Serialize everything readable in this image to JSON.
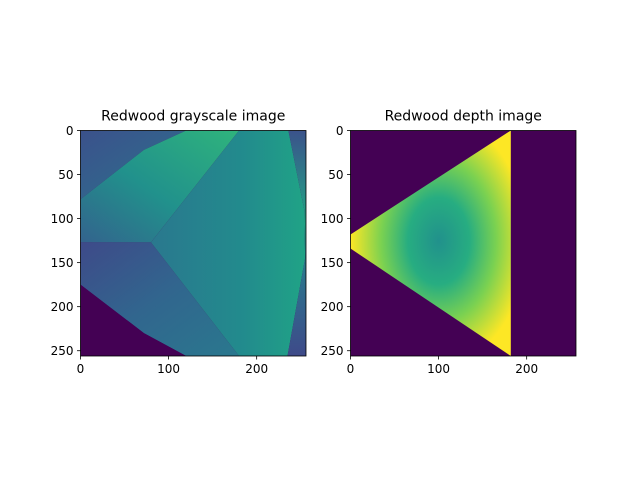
{
  "chart_data": [
    {
      "type": "heatmap",
      "title": "Redwood grayscale image",
      "xlabel": "",
      "ylabel": "",
      "xlim": [
        0,
        256
      ],
      "ylim": [
        256,
        0
      ],
      "y_inverted": true,
      "x_ticks": [
        0,
        100,
        200
      ],
      "y_ticks": [
        0,
        50,
        100,
        150,
        200,
        250
      ],
      "colormap": "viridis",
      "background_color": "#440154",
      "regions": [
        {
          "name": "upper-left",
          "polygon": [
            [
              0,
              0
            ],
            [
              120,
              0
            ],
            [
              72,
              22
            ],
            [
              0,
              78
            ]
          ],
          "value_range": [
            0.25,
            0.35
          ]
        },
        {
          "name": "upper-face",
          "polygon": [
            [
              0,
              78
            ],
            [
              72,
              22
            ],
            [
              120,
              0
            ],
            [
              180,
              0
            ],
            [
              80,
              127
            ],
            [
              0,
              127
            ]
          ],
          "value_range": [
            0.35,
            0.7
          ]
        },
        {
          "name": "lower-face",
          "polygon": [
            [
              0,
              127
            ],
            [
              80,
              127
            ],
            [
              180,
              256
            ],
            [
              120,
              256
            ],
            [
              72,
              230
            ],
            [
              0,
              175
            ]
          ],
          "value_range": [
            0.25,
            0.5
          ]
        },
        {
          "name": "right-face",
          "polygon": [
            [
              80,
              127
            ],
            [
              180,
              0
            ],
            [
              236,
              0
            ],
            [
              254,
              90
            ],
            [
              255,
              145
            ],
            [
              235,
              256
            ],
            [
              180,
              256
            ]
          ],
          "value_range": [
            0.45,
            0.6
          ]
        },
        {
          "name": "right-edge",
          "polygon": [
            [
              236,
              0
            ],
            [
              256,
              0
            ],
            [
              256,
              256
            ],
            [
              235,
              256
            ],
            [
              255,
              145
            ],
            [
              254,
              90
            ]
          ],
          "value_range": [
            0.3,
            0.5
          ]
        },
        {
          "name": "lower-left-empty",
          "polygon": [
            [
              0,
              175
            ],
            [
              72,
              230
            ],
            [
              120,
              256
            ],
            [
              0,
              256
            ]
          ],
          "value_range": [
            0.0,
            0.0
          ]
        }
      ]
    },
    {
      "type": "heatmap",
      "title": "Redwood depth image",
      "xlabel": "",
      "ylabel": "",
      "xlim": [
        0,
        256
      ],
      "ylim": [
        256,
        0
      ],
      "y_inverted": true,
      "x_ticks": [
        0,
        100,
        200
      ],
      "y_ticks": [
        0,
        50,
        100,
        150,
        200,
        250
      ],
      "colormap": "viridis",
      "background_color": "#440154",
      "regions": [
        {
          "name": "triangle",
          "polygon": [
            [
              182,
              0
            ],
            [
              182,
              256
            ],
            [
              0,
              134
            ],
            [
              0,
              118
            ]
          ],
          "center": [
            110,
            125
          ],
          "value_range": [
            0.55,
            1.0
          ]
        }
      ]
    }
  ]
}
